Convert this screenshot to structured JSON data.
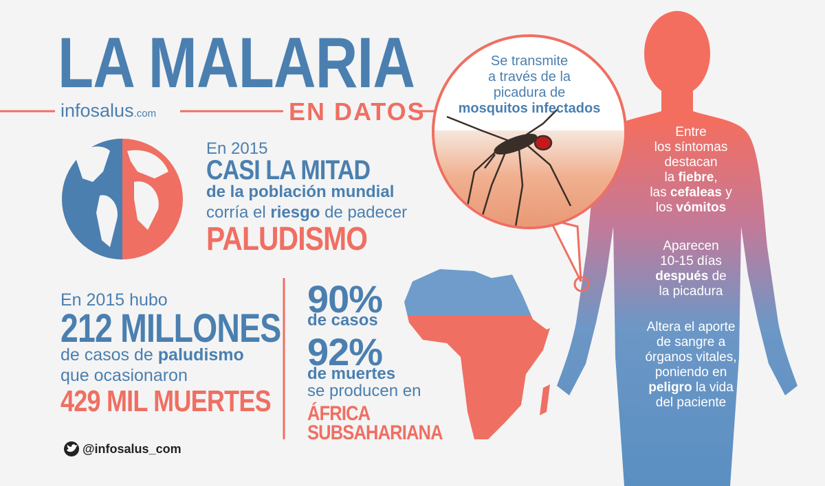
{
  "header": {
    "title": "LA MALARIA",
    "brand": "infosalus",
    "brand_suffix": ".com",
    "subtitle": "EN DATOS"
  },
  "stat1": {
    "lead": "En 2015",
    "highlight": "CASI LA MITAD",
    "line1": "de la población mundial",
    "line2_pre": "corría el",
    "line2_bold": "riesgo",
    "line2_post": "de padecer",
    "emphasis": "PALUDISMO"
  },
  "stat2": {
    "lead": "En 2015 hubo",
    "highlight": "212 MILLONES",
    "line1_pre": "de casos de",
    "line1_bold": "paludismo",
    "line2": "que ocasionaron",
    "emphasis": "429 MIL MUERTES"
  },
  "africa": {
    "cases_pct": "90%",
    "cases_label": "de casos",
    "deaths_pct": "92%",
    "deaths_label": "de muertes",
    "line": "se producen en",
    "region_1": "ÁFRICA",
    "region_2": "SUBSAHARIANA"
  },
  "transmission": {
    "line1": "Se transmite",
    "line2": "a través de la",
    "line3": "picadura de",
    "bold": "mosquitos infectados"
  },
  "symptoms": {
    "line1": "Entre",
    "line2": "los síntomas",
    "line3": "destacan",
    "line4_pre": "la",
    "line4_bold": "fiebre",
    "line4_post": ",",
    "line5_pre": "las",
    "line5_bold": "cefaleas",
    "line5_post": "y",
    "line6_pre": "los",
    "line6_bold": "vómitos"
  },
  "onset": {
    "line1": "Aparecen",
    "line2": "10-15 días",
    "line3_bold": "después",
    "line3_post": "de",
    "line4": "la picadura"
  },
  "effect": {
    "line1": "Altera el aporte",
    "line2": "de sangre a",
    "line3": "órganos vitales,",
    "line4": "poniendo en",
    "line5_bold": "peligro",
    "line5_post": "la vida",
    "line6": "del paciente"
  },
  "footer": {
    "handle": "@infosalus_com"
  }
}
